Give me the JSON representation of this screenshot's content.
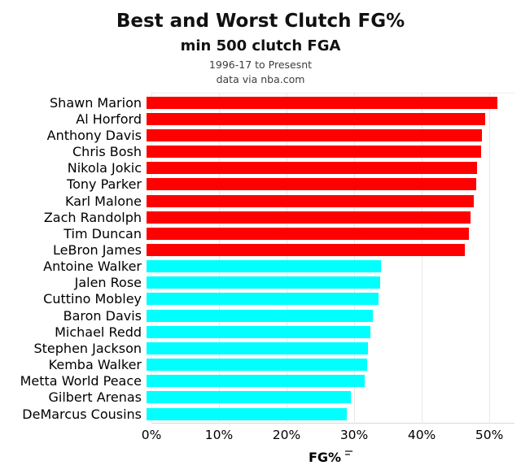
{
  "header": {
    "title": "Best and Worst Clutch FG%",
    "subtitle": "min 500 clutch FGA",
    "caption_line1": "1996-17 to Presesnt",
    "caption_line2": "data via nba.com"
  },
  "chart_data": {
    "type": "bar",
    "orientation": "horizontal",
    "title": "Best and Worst Clutch FG%",
    "xlabel": "FG%",
    "ylabel": "",
    "xlim": [
      0,
      53
    ],
    "x_tick_labels": [
      "0%",
      "10%",
      "20%",
      "30%",
      "40%",
      "50%"
    ],
    "x_tick_values": [
      0,
      10,
      20,
      30,
      40,
      50
    ],
    "grid": "vertical-light",
    "legend": "none",
    "group_colors": {
      "best": "#ff0000",
      "worst": "#00ffff"
    },
    "bars": [
      {
        "label": "Shawn Marion",
        "value": 51.2,
        "group": "best"
      },
      {
        "label": "Al Horford",
        "value": 49.4,
        "group": "best"
      },
      {
        "label": "Anthony Davis",
        "value": 49.0,
        "group": "best"
      },
      {
        "label": "Chris Bosh",
        "value": 48.8,
        "group": "best"
      },
      {
        "label": "Nikola Jokic",
        "value": 48.3,
        "group": "best"
      },
      {
        "label": "Tony Parker",
        "value": 48.1,
        "group": "best"
      },
      {
        "label": "Karl Malone",
        "value": 47.8,
        "group": "best"
      },
      {
        "label": "Zach Randolph",
        "value": 47.3,
        "group": "best"
      },
      {
        "label": "Tim Duncan",
        "value": 47.1,
        "group": "best"
      },
      {
        "label": "LeBron James",
        "value": 46.5,
        "group": "best"
      },
      {
        "label": "Antoine Walker",
        "value": 34.2,
        "group": "worst"
      },
      {
        "label": "Jalen Rose",
        "value": 34.1,
        "group": "worst"
      },
      {
        "label": "Cuttino Mobley",
        "value": 33.9,
        "group": "worst"
      },
      {
        "label": "Baron Davis",
        "value": 33.0,
        "group": "worst"
      },
      {
        "label": "Michael Redd",
        "value": 32.7,
        "group": "worst"
      },
      {
        "label": "Stephen Jackson",
        "value": 32.3,
        "group": "worst"
      },
      {
        "label": "Kemba Walker",
        "value": 32.2,
        "group": "worst"
      },
      {
        "label": "Metta World Peace",
        "value": 31.8,
        "group": "worst"
      },
      {
        "label": "Gilbert Arenas",
        "value": 29.8,
        "group": "worst"
      },
      {
        "label": "DeMarcus Cousins",
        "value": 29.2,
        "group": "worst"
      }
    ]
  }
}
